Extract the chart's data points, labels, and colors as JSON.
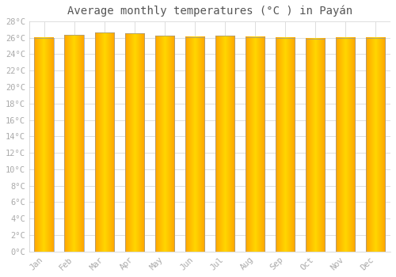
{
  "title": "Average monthly temperatures (°C ) in Payán",
  "months": [
    "Jan",
    "Feb",
    "Mar",
    "Apr",
    "May",
    "Jun",
    "Jul",
    "Aug",
    "Sep",
    "Oct",
    "Nov",
    "Dec"
  ],
  "values": [
    26.0,
    26.3,
    26.6,
    26.5,
    26.2,
    26.1,
    26.2,
    26.1,
    26.0,
    25.9,
    26.0,
    26.0
  ],
  "bar_color_center": "#FFD700",
  "bar_color_edge": "#FFA500",
  "bar_border_color": "#999999",
  "background_color": "#ffffff",
  "plot_bg_color": "#ffffff",
  "grid_color": "#dddddd",
  "ylim": [
    0,
    28
  ],
  "ytick_step": 2,
  "title_fontsize": 10,
  "tick_fontsize": 7.5,
  "tick_color": "#aaaaaa",
  "title_color": "#555555",
  "bar_width": 0.65
}
